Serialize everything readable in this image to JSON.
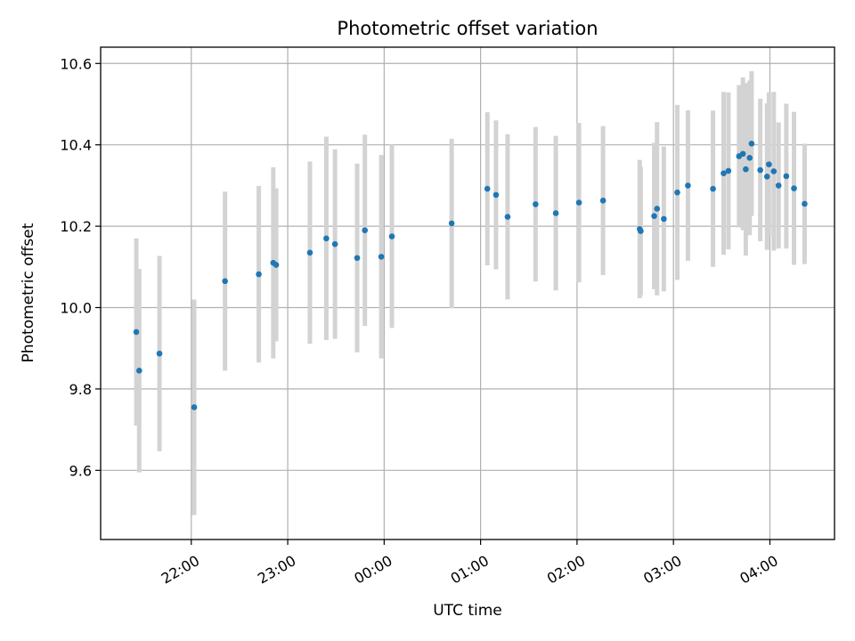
{
  "chart_data": {
    "type": "scatter",
    "title": "Photometric offset variation",
    "xlabel": "UTC time",
    "ylabel": "Photometric offset",
    "x_unit": "hours after 00:00 UTC (negative = previous evening)",
    "xlim": [
      -1.94,
      5.67
    ],
    "ylim": [
      9.43,
      10.64
    ],
    "xticks": [
      {
        "value": -1,
        "label": "22:00"
      },
      {
        "value": 0,
        "label": "23:00"
      },
      {
        "value": 1,
        "label": "00:00"
      },
      {
        "value": 2,
        "label": "01:00"
      },
      {
        "value": 3,
        "label": "02:00"
      },
      {
        "value": 4,
        "label": "03:00"
      },
      {
        "value": 5,
        "label": "04:00"
      }
    ],
    "yticks": [
      {
        "value": 9.6,
        "label": "9.6"
      },
      {
        "value": 9.8,
        "label": "9.8"
      },
      {
        "value": 10.0,
        "label": "10.0"
      },
      {
        "value": 10.2,
        "label": "10.2"
      },
      {
        "value": 10.4,
        "label": "10.4"
      },
      {
        "value": 10.6,
        "label": "10.6"
      }
    ],
    "grid": true,
    "colors": {
      "marker": "#1f77b4",
      "errorbar": "#d3d3d3"
    },
    "points": [
      {
        "x": -1.57,
        "y": 9.94,
        "err": 0.23
      },
      {
        "x": -1.54,
        "y": 9.845,
        "err": 0.25
      },
      {
        "x": -1.33,
        "y": 9.887,
        "err": 0.24
      },
      {
        "x": -0.97,
        "y": 9.755,
        "err": 0.265
      },
      {
        "x": -0.65,
        "y": 10.065,
        "err": 0.22
      },
      {
        "x": -0.3,
        "y": 10.082,
        "err": 0.217
      },
      {
        "x": -0.15,
        "y": 10.11,
        "err": 0.235
      },
      {
        "x": -0.12,
        "y": 10.105,
        "err": 0.188
      },
      {
        "x": 0.23,
        "y": 10.135,
        "err": 0.224
      },
      {
        "x": 0.4,
        "y": 10.17,
        "err": 0.25
      },
      {
        "x": 0.49,
        "y": 10.156,
        "err": 0.233
      },
      {
        "x": 0.72,
        "y": 10.122,
        "err": 0.232
      },
      {
        "x": 0.8,
        "y": 10.19,
        "err": 0.235
      },
      {
        "x": 0.97,
        "y": 10.125,
        "err": 0.25
      },
      {
        "x": 1.08,
        "y": 10.175,
        "err": 0.225
      },
      {
        "x": 1.7,
        "y": 10.207,
        "err": 0.208
      },
      {
        "x": 2.07,
        "y": 10.292,
        "err": 0.188
      },
      {
        "x": 2.16,
        "y": 10.277,
        "err": 0.183
      },
      {
        "x": 2.28,
        "y": 10.223,
        "err": 0.203
      },
      {
        "x": 2.57,
        "y": 10.254,
        "err": 0.19
      },
      {
        "x": 2.78,
        "y": 10.232,
        "err": 0.19
      },
      {
        "x": 3.02,
        "y": 10.258,
        "err": 0.196
      },
      {
        "x": 3.27,
        "y": 10.263,
        "err": 0.183
      },
      {
        "x": 3.65,
        "y": 10.193,
        "err": 0.17
      },
      {
        "x": 3.66,
        "y": 10.188,
        "err": 0.158
      },
      {
        "x": 3.8,
        "y": 10.225,
        "err": 0.18
      },
      {
        "x": 3.83,
        "y": 10.243,
        "err": 0.213
      },
      {
        "x": 3.9,
        "y": 10.218,
        "err": 0.178
      },
      {
        "x": 4.04,
        "y": 10.283,
        "err": 0.215
      },
      {
        "x": 4.15,
        "y": 10.3,
        "err": 0.185
      },
      {
        "x": 4.41,
        "y": 10.292,
        "err": 0.192
      },
      {
        "x": 4.52,
        "y": 10.33,
        "err": 0.2
      },
      {
        "x": 4.57,
        "y": 10.336,
        "err": 0.193
      },
      {
        "x": 4.68,
        "y": 10.372,
        "err": 0.175
      },
      {
        "x": 4.72,
        "y": 10.378,
        "err": 0.188
      },
      {
        "x": 4.75,
        "y": 10.34,
        "err": 0.212
      },
      {
        "x": 4.79,
        "y": 10.368,
        "err": 0.19
      },
      {
        "x": 4.81,
        "y": 10.403,
        "err": 0.178
      },
      {
        "x": 4.9,
        "y": 10.338,
        "err": 0.175
      },
      {
        "x": 4.97,
        "y": 10.322,
        "err": 0.18
      },
      {
        "x": 4.99,
        "y": 10.352,
        "err": 0.177
      },
      {
        "x": 5.04,
        "y": 10.335,
        "err": 0.195
      },
      {
        "x": 5.09,
        "y": 10.3,
        "err": 0.155
      },
      {
        "x": 5.17,
        "y": 10.323,
        "err": 0.178
      },
      {
        "x": 5.25,
        "y": 10.293,
        "err": 0.188
      },
      {
        "x": 5.36,
        "y": 10.255,
        "err": 0.148
      }
    ]
  }
}
